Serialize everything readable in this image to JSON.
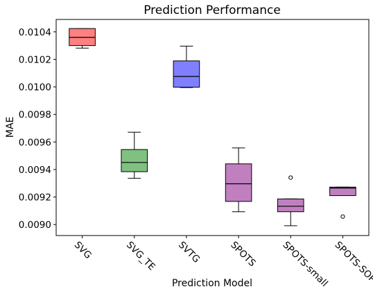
{
  "chart_data": {
    "type": "box",
    "title": "Prediction Performance",
    "xlabel": "Prediction Model",
    "ylabel": "MAE",
    "ylim": [
      0.00892,
      0.01049
    ],
    "yticks": [
      "0.0090",
      "0.0092",
      "0.0094",
      "0.0096",
      "0.0098",
      "0.0100",
      "0.0102",
      "0.0104"
    ],
    "grid": false,
    "categories": [
      "SVG",
      "SVG_TE",
      "SVTG",
      "SPOTS",
      "SPOTS-small",
      "SPOTS-SOP"
    ],
    "boxes": [
      {
        "label": "SVG",
        "color": "#ff8080",
        "min": 0.010282,
        "q1": 0.0103,
        "median": 0.01036,
        "q3": 0.010424,
        "max": 0.010424,
        "outliers": []
      },
      {
        "label": "SVG_TE",
        "color": "#80c080",
        "min": 0.009336,
        "q1": 0.009384,
        "median": 0.009451,
        "q3": 0.009545,
        "max": 0.009671,
        "outliers": []
      },
      {
        "label": "SVTG",
        "color": "#8080ff",
        "min": 0.009995,
        "q1": 0.009998,
        "median": 0.010076,
        "q3": 0.010189,
        "max": 0.010296,
        "outliers": []
      },
      {
        "label": "SPOTS",
        "color": "#c080c0",
        "min": 0.009093,
        "q1": 0.009168,
        "median": 0.009296,
        "q3": 0.009441,
        "max": 0.009557,
        "outliers": []
      },
      {
        "label": "SPOTS-small",
        "color": "#c080c0",
        "min": 0.008991,
        "q1": 0.009093,
        "median": 0.009133,
        "q3": 0.009186,
        "max": 0.009186,
        "outliers": [
          0.009341
        ]
      },
      {
        "label": "SPOTS-SOP",
        "color": "#c080c0",
        "min": 0.00921,
        "q1": 0.00921,
        "median": 0.009265,
        "q3": 0.009272,
        "max": 0.009272,
        "outliers": [
          0.009058
        ]
      }
    ]
  }
}
